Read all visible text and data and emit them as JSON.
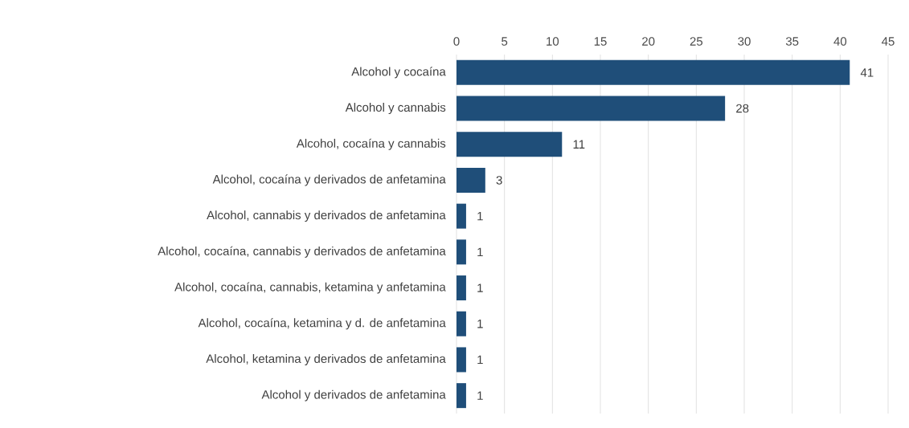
{
  "chart_data": {
    "type": "bar",
    "orientation": "horizontal",
    "categories": [
      "Alcohol y cocaína",
      "Alcohol y cannabis",
      "Alcohol, cocaína y cannabis",
      "Alcohol, cocaína y derivados de anfetamina",
      "Alcohol, cannabis y derivados de anfetamina",
      "Alcohol, cocaína, cannabis y derivados de anfetamina",
      "Alcohol, cocaína, cannabis, ketamina y anfetamina",
      "Alcohol, cocaína, ketamina y d. de anfetamina",
      "Alcohol, ketamina y derivados de anfetamina",
      "Alcohol y derivados de anfetamina"
    ],
    "values": [
      41,
      28,
      11,
      3,
      1,
      1,
      1,
      1,
      1,
      1
    ],
    "color": "#1f4e79",
    "xlim": [
      0,
      45
    ],
    "xticks": [
      0,
      5,
      10,
      15,
      20,
      25,
      30,
      35,
      40,
      45
    ],
    "grid": "x",
    "data_labels": true
  }
}
